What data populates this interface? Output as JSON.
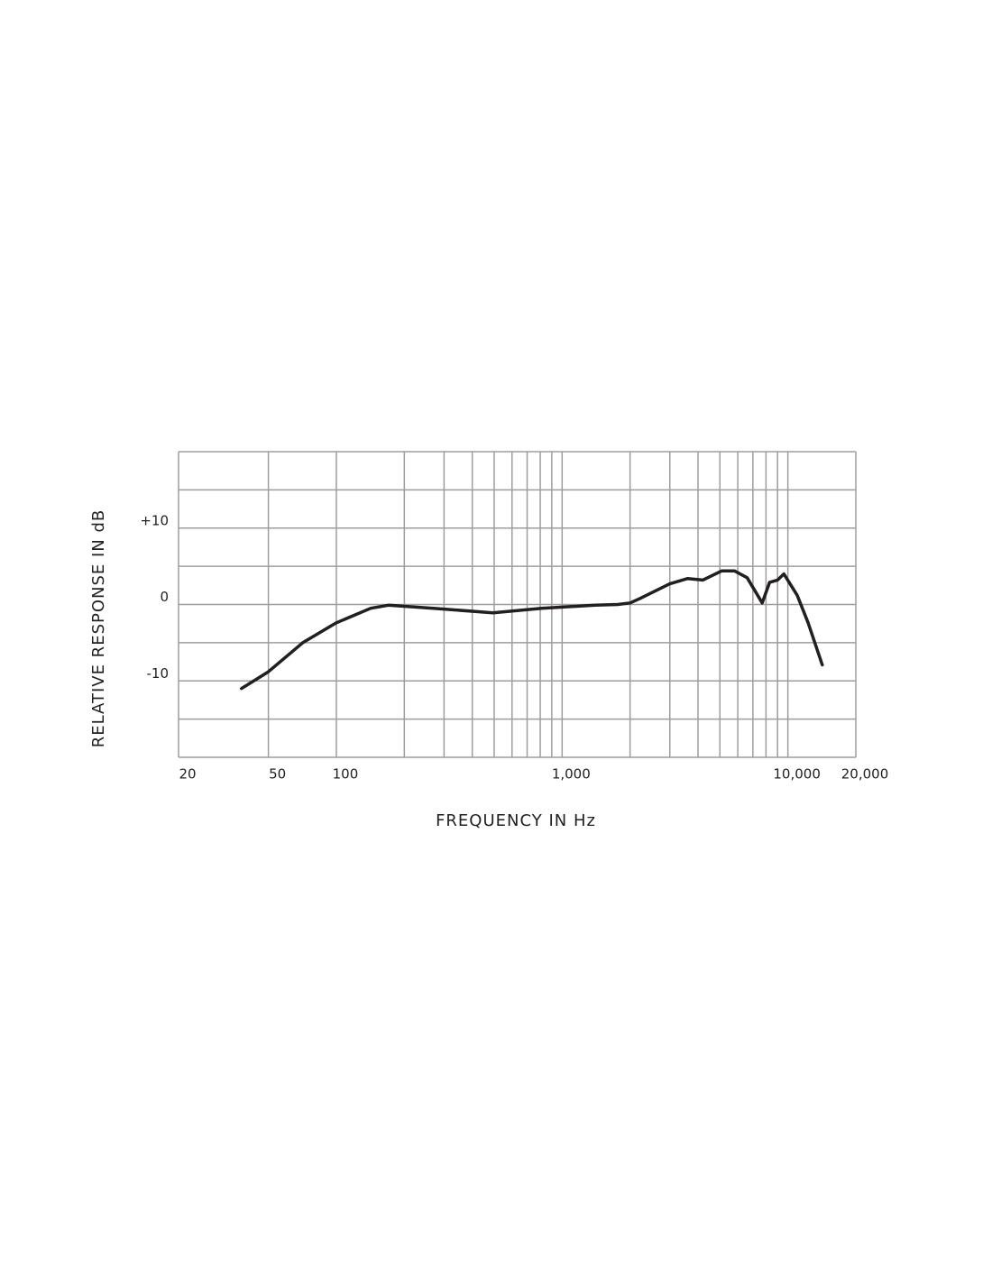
{
  "chart_data": {
    "type": "line",
    "x_label": "FREQUENCY IN Hz",
    "y_label": "RELATIVE RESPONSE IN dB",
    "x": [
      38,
      50,
      71,
      100,
      142,
      170,
      269,
      494,
      810,
      1400,
      1760,
      2000,
      2220,
      3000,
      3600,
      4200,
      5100,
      5800,
      6600,
      7700,
      8300,
      9000,
      9600,
      11000,
      12300,
      14200
    ],
    "series": [
      {
        "color": "#231f20",
        "values": [
          -11.0,
          -8.8,
          -5.0,
          -2.4,
          -0.5,
          -0.1,
          -0.5,
          -1.1,
          -0.5,
          -0.1,
          0,
          0.2,
          0.8,
          2.7,
          3.4,
          3.2,
          4.4,
          4.4,
          3.5,
          0.2,
          2.9,
          3.2,
          4.0,
          1.2,
          -2.4,
          -7.9
        ]
      }
    ],
    "xscale": "log",
    "xlim": [
      20,
      20000
    ],
    "ylim": [
      -20,
      20
    ],
    "xticks": [
      20,
      50,
      100,
      {
        "value": 1000,
        "label": "1,000"
      },
      {
        "value": 10000,
        "label": "10,000"
      },
      {
        "value": 20000,
        "label": "20,000"
      }
    ],
    "minor_xticks": [
      200,
      300,
      400,
      500,
      600,
      700,
      800,
      900,
      2000,
      3000,
      4000,
      5000,
      6000,
      7000,
      8000,
      9000
    ],
    "yticks": [
      {
        "value": 10,
        "label": "+10"
      },
      0,
      -10
    ],
    "minor_yticks": [
      -20,
      -15,
      -5,
      5,
      15,
      20
    ],
    "grid": true,
    "grid_color": "#9d9d9d"
  }
}
